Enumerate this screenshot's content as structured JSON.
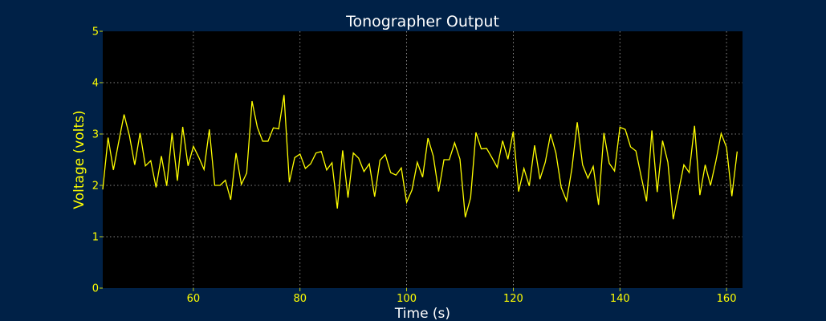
{
  "colors": {
    "background": "#002147",
    "plot_background": "#000000",
    "line": "#ffff00",
    "text": "#ffffff",
    "tick_labels": "#ffff00",
    "grid": "#b0b0b0"
  },
  "chart_data": {
    "type": "line",
    "title": "Tonographer Output",
    "xlabel": "Time (s)",
    "ylabel": "Voltage (volts)",
    "xlim": [
      43,
      163
    ],
    "ylim": [
      0,
      5
    ],
    "x_ticks": [
      60,
      80,
      100,
      120,
      140,
      160
    ],
    "y_ticks": [
      0,
      1,
      2,
      3,
      4,
      5
    ],
    "grid": true,
    "legend": "none",
    "series": [
      {
        "x_start": 43,
        "x_step": 1,
        "values": [
          1.92,
          2.93,
          2.3,
          2.85,
          3.38,
          2.97,
          2.4,
          3.02,
          2.38,
          2.48,
          1.96,
          2.57,
          1.99,
          3.02,
          2.09,
          3.14,
          2.38,
          2.76,
          2.55,
          2.31,
          3.09,
          2.0,
          2.0,
          2.1,
          1.72,
          2.63,
          2.02,
          2.24,
          3.64,
          3.13,
          2.86,
          2.86,
          3.12,
          3.1,
          3.76,
          2.06,
          2.54,
          2.61,
          2.33,
          2.42,
          2.63,
          2.66,
          2.3,
          2.44,
          1.55,
          2.68,
          1.76,
          2.63,
          2.53,
          2.27,
          2.42,
          1.78,
          2.49,
          2.6,
          2.25,
          2.2,
          2.34,
          1.67,
          1.91,
          2.45,
          2.16,
          2.92,
          2.57,
          1.88,
          2.5,
          2.5,
          2.83,
          2.51,
          1.38,
          1.76,
          3.03,
          2.71,
          2.72,
          2.54,
          2.35,
          2.87,
          2.51,
          3.05,
          1.88,
          2.33,
          1.99,
          2.78,
          2.12,
          2.45,
          3.0,
          2.63,
          1.96,
          1.7,
          2.33,
          3.23,
          2.4,
          2.14,
          2.37,
          1.62,
          3.02,
          2.43,
          2.28,
          3.13,
          3.09,
          2.75,
          2.67,
          2.17,
          1.69,
          3.07,
          1.87,
          2.87,
          2.45,
          1.34,
          1.88,
          2.4,
          2.25,
          3.16,
          1.81,
          2.4,
          2.0,
          2.47,
          3.01,
          2.74,
          1.79,
          2.66
        ]
      }
    ]
  }
}
